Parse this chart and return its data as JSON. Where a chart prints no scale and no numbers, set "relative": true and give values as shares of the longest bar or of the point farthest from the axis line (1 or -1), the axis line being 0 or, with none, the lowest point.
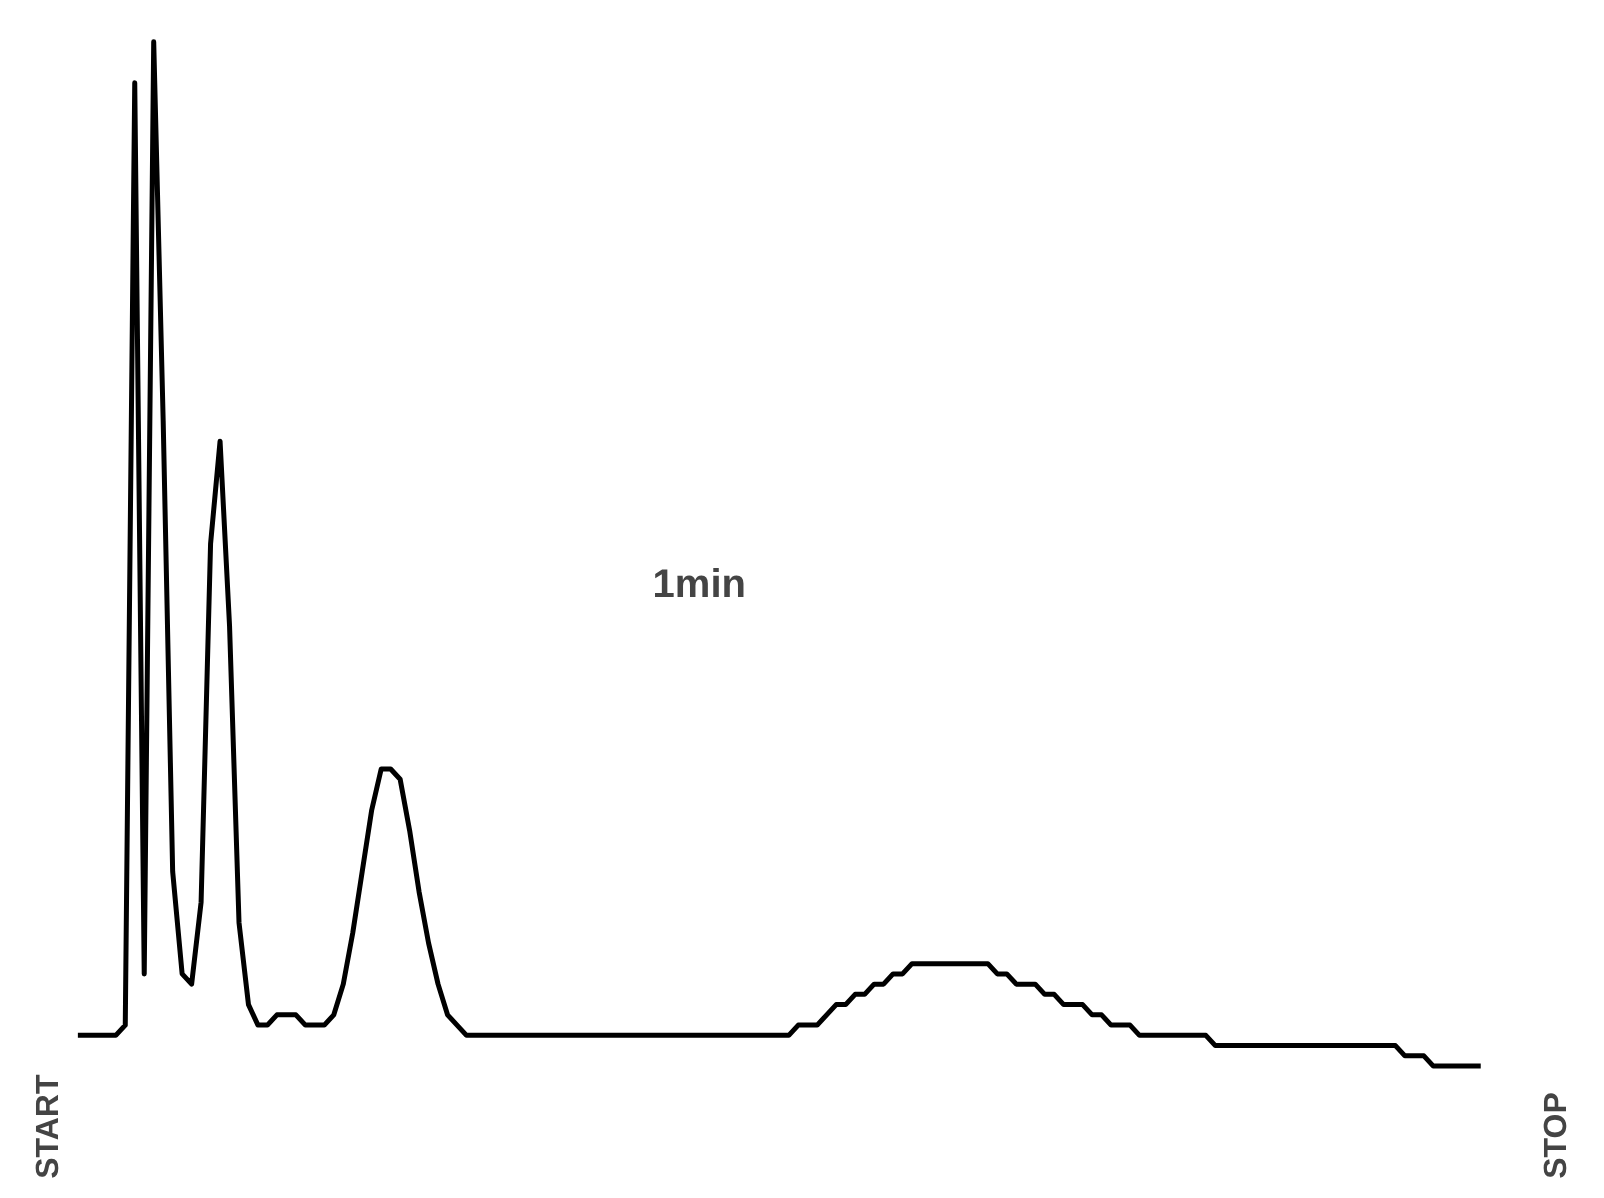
{
  "chart_data": {
    "type": "line",
    "relative": true,
    "categories": [
      null,
      null,
      null,
      null,
      null,
      null,
      null,
      null,
      null,
      null,
      null,
      null,
      null,
      null,
      null,
      null,
      null,
      null,
      null,
      null,
      null,
      null,
      null,
      null,
      null,
      null,
      null,
      null,
      null,
      null,
      null,
      null,
      null,
      null,
      null,
      null,
      null,
      null,
      null,
      null,
      null,
      null,
      null,
      null,
      null,
      null,
      null,
      null,
      null,
      null,
      null,
      null,
      null,
      null,
      null,
      null,
      null,
      null,
      null,
      null,
      null,
      null,
      null,
      null,
      null,
      null,
      null,
      null,
      null,
      null,
      null,
      null,
      null,
      null,
      null,
      null,
      null,
      null,
      null,
      null,
      null,
      null,
      null,
      null,
      null,
      null,
      null,
      null,
      null,
      null,
      null,
      null,
      null,
      null,
      null,
      null,
      null,
      null,
      null,
      null,
      null,
      null,
      null,
      null,
      null,
      null,
      null,
      null,
      null,
      null,
      null,
      null,
      null,
      null,
      null,
      null,
      null,
      null,
      null,
      null,
      null,
      null,
      null,
      null,
      null,
      null,
      null,
      null,
      null,
      null,
      null,
      null,
      null,
      null,
      null,
      null,
      null,
      null,
      null,
      null,
      null,
      null,
      null,
      null,
      null,
      null,
      null,
      null,
      null
    ],
    "series": [
      {
        "color": "#000000",
        "values": [
          0.03,
          0.03,
          0.03,
          0.03,
          0.03,
          0.04,
          0.96,
          0.09,
          1.0,
          0.63,
          0.19,
          0.09,
          0.08,
          0.16,
          0.51,
          0.61,
          0.43,
          0.14,
          0.06,
          0.04,
          0.04,
          0.05,
          0.05,
          0.05,
          0.04,
          0.04,
          0.04,
          0.05,
          0.08,
          0.13,
          0.19,
          0.25,
          0.29,
          0.29,
          0.28,
          0.23,
          0.17,
          0.12,
          0.08,
          0.05,
          0.04,
          0.03,
          0.03,
          0.03,
          0.03,
          0.03,
          0.03,
          0.03,
          0.03,
          0.03,
          0.03,
          0.03,
          0.03,
          0.03,
          0.03,
          0.03,
          0.03,
          0.03,
          0.03,
          0.03,
          0.03,
          0.03,
          0.03,
          0.03,
          0.03,
          0.03,
          0.03,
          0.03,
          0.03,
          0.03,
          0.03,
          0.03,
          0.03,
          0.03,
          0.03,
          0.03,
          0.04,
          0.04,
          0.04,
          0.05,
          0.06,
          0.06,
          0.07,
          0.07,
          0.08,
          0.08,
          0.09,
          0.09,
          0.1,
          0.1,
          0.1,
          0.1,
          0.1,
          0.1,
          0.1,
          0.1,
          0.1,
          0.09,
          0.09,
          0.08,
          0.08,
          0.08,
          0.07,
          0.07,
          0.06,
          0.06,
          0.06,
          0.05,
          0.05,
          0.04,
          0.04,
          0.04,
          0.03,
          0.03,
          0.03,
          0.03,
          0.03,
          0.03,
          0.03,
          0.03,
          0.02,
          0.02,
          0.02,
          0.02,
          0.02,
          0.02,
          0.02,
          0.02,
          0.02,
          0.02,
          0.02,
          0.02,
          0.02,
          0.02,
          0.02,
          0.02,
          0.02,
          0.02,
          0.02,
          0.02,
          0.01,
          0.01,
          0.01,
          0.0,
          0.0,
          0.0,
          0.0,
          0.0,
          0.0
        ]
      }
    ],
    "annotations": [
      "1min",
      "START",
      "STOP"
    ]
  }
}
